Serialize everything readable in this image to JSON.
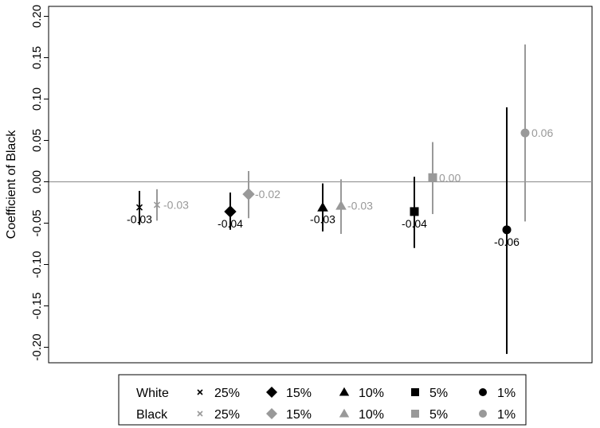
{
  "chart_data": {
    "type": "scatter",
    "title": "",
    "xlabel": "",
    "ylabel": "Coefficient of Black",
    "ylim": [
      -0.21,
      0.21
    ],
    "y_ticks": [
      "-0.20",
      "-0.15",
      "-0.10",
      "-0.05",
      "0.00",
      "0.05",
      "0.10",
      "0.15",
      "0.20"
    ],
    "y_tick_values": [
      -0.2,
      -0.15,
      -0.1,
      -0.05,
      0.0,
      0.05,
      0.1,
      0.15,
      0.2
    ],
    "reference_line": 0,
    "grid": false,
    "legend_position": "bottom",
    "legend": {
      "rows": [
        {
          "group": "White",
          "color": "#000000"
        },
        {
          "group": "Black",
          "color": "#999999"
        }
      ],
      "entries": [
        {
          "label": "25%",
          "marker": "x"
        },
        {
          "label": "15%",
          "marker": "diamond"
        },
        {
          "label": "10%",
          "marker": "triangle"
        },
        {
          "label": "5%",
          "marker": "square"
        },
        {
          "label": "1%",
          "marker": "circle"
        }
      ]
    },
    "series": [
      {
        "group": "White",
        "threshold": "25%",
        "marker": "x",
        "color": "#000000",
        "value": -0.031,
        "ci": [
          -0.011,
          -0.052
        ],
        "label": "-0.03"
      },
      {
        "group": "Black",
        "threshold": "25%",
        "marker": "x",
        "color": "#999999",
        "value": -0.028,
        "ci": [
          -0.009,
          -0.047
        ],
        "label": "-0.03"
      },
      {
        "group": "White",
        "threshold": "15%",
        "marker": "diamond",
        "color": "#000000",
        "value": -0.036,
        "ci": [
          -0.013,
          -0.058
        ],
        "label": "-0.04"
      },
      {
        "group": "Black",
        "threshold": "15%",
        "marker": "diamond",
        "color": "#999999",
        "value": -0.015,
        "ci": [
          0.013,
          -0.044
        ],
        "label": "-0.02"
      },
      {
        "group": "White",
        "threshold": "10%",
        "marker": "triangle",
        "color": "#000000",
        "value": -0.031,
        "ci": [
          -0.002,
          -0.06
        ],
        "label": "-0.03"
      },
      {
        "group": "Black",
        "threshold": "10%",
        "marker": "triangle",
        "color": "#999999",
        "value": -0.029,
        "ci": [
          0.003,
          -0.063
        ],
        "label": "-0.03"
      },
      {
        "group": "White",
        "threshold": "5%",
        "marker": "square",
        "color": "#000000",
        "value": -0.036,
        "ci": [
          0.006,
          -0.08
        ],
        "label": "-0.04"
      },
      {
        "group": "Black",
        "threshold": "5%",
        "marker": "square",
        "color": "#999999",
        "value": 0.005,
        "ci": [
          0.048,
          -0.039
        ],
        "label": "0.00"
      },
      {
        "group": "White",
        "threshold": "1%",
        "marker": "circle",
        "color": "#000000",
        "value": -0.058,
        "ci": [
          0.09,
          -0.208
        ],
        "label": "-0.06"
      },
      {
        "group": "Black",
        "threshold": "1%",
        "marker": "circle",
        "color": "#999999",
        "value": 0.059,
        "ci": [
          0.166,
          -0.048
        ],
        "label": "0.06"
      }
    ]
  }
}
